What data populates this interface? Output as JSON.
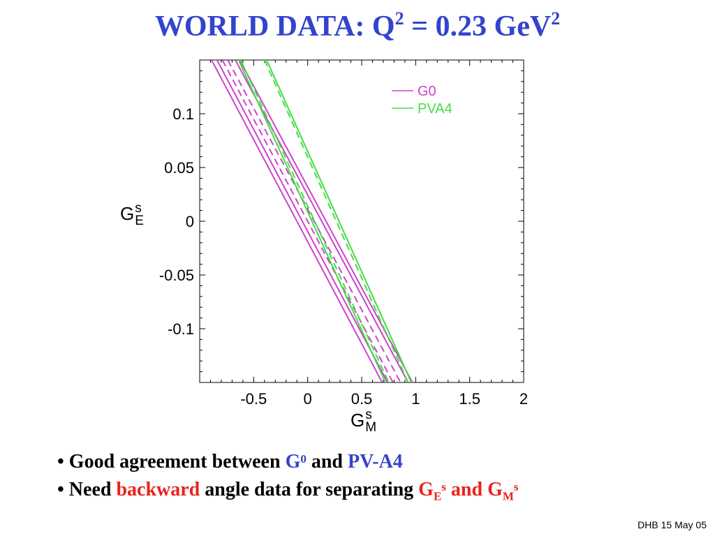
{
  "slide": {
    "title_text": "WORLD DATA: Q",
    "title_sup1": "2",
    "title_mid": " = 0.23 GeV",
    "title_sup2": "2",
    "footer": "DHB 15 May 05"
  },
  "bullets": {
    "b1_prefix": "• Good agreement between ",
    "b1_g": "G",
    "b1_g_sup": "0",
    "b1_and": " and ",
    "b1_pv": "PV-A4",
    "b2_prefix": "• Need ",
    "b2_backward": "backward",
    "b2_mid": " angle data for separating ",
    "b2_ge": "G",
    "b2_ge_sub": "E",
    "b2_ge_sup": "s",
    "b2_and": " and ",
    "b2_gm": "G",
    "b2_gm_sub": "M",
    "b2_gm_sup": "s"
  },
  "axes": {
    "ylabel_main": "G",
    "ylabel_sup": "s",
    "ylabel_sub": "E",
    "xlabel_main": "G",
    "xlabel_sup": "s",
    "xlabel_sub": "M"
  },
  "chart_data": {
    "type": "line",
    "xlim": [
      -1.0,
      2.0
    ],
    "ylim": [
      -0.15,
      0.15
    ],
    "xticks": [
      -0.5,
      0,
      0.5,
      1,
      1.5,
      2
    ],
    "xtick_labels": [
      "-0.5",
      "0",
      "0.5",
      "1",
      "1.5",
      "2"
    ],
    "yticks": [
      -0.1,
      -0.05,
      0,
      0.05,
      0.1
    ],
    "ytick_labels": [
      "-0.1",
      "-0.05",
      "0",
      "0.05",
      "0.1"
    ],
    "grid": false,
    "legend_position": "top-right",
    "series": [
      {
        "name": "G0",
        "color": "#cc44cc",
        "lines": [
          {
            "style": "solid",
            "points": [
              [
                -0.89,
                0.15
              ],
              [
                0.69,
                -0.15
              ]
            ]
          },
          {
            "style": "solid",
            "points": [
              [
                -0.84,
                0.15
              ],
              [
                0.74,
                -0.15
              ]
            ]
          },
          {
            "style": "dashed",
            "points": [
              [
                -0.79,
                0.15
              ],
              [
                0.79,
                -0.15
              ]
            ]
          },
          {
            "style": "dashed",
            "points": [
              [
                -0.74,
                0.15
              ],
              [
                0.86,
                -0.15
              ]
            ]
          },
          {
            "style": "solid",
            "points": [
              [
                -0.67,
                0.15
              ],
              [
                0.93,
                -0.15
              ]
            ]
          },
          {
            "style": "solid",
            "points": [
              [
                -0.63,
                0.15
              ],
              [
                0.97,
                -0.15
              ]
            ]
          }
        ]
      },
      {
        "name": "PVA4",
        "color": "#44dd44",
        "lines": [
          {
            "style": "solid",
            "points": [
              [
                -0.64,
                0.15
              ],
              [
                0.72,
                -0.15
              ]
            ]
          },
          {
            "style": "dashed",
            "points": [
              [
                -0.62,
                0.15
              ],
              [
                0.75,
                -0.15
              ]
            ]
          },
          {
            "style": "dashed",
            "points": [
              [
                -0.4,
                0.15
              ],
              [
                0.93,
                -0.15
              ]
            ]
          },
          {
            "style": "solid",
            "points": [
              [
                -0.38,
                0.15
              ],
              [
                0.96,
                -0.15
              ]
            ]
          }
        ]
      }
    ]
  }
}
